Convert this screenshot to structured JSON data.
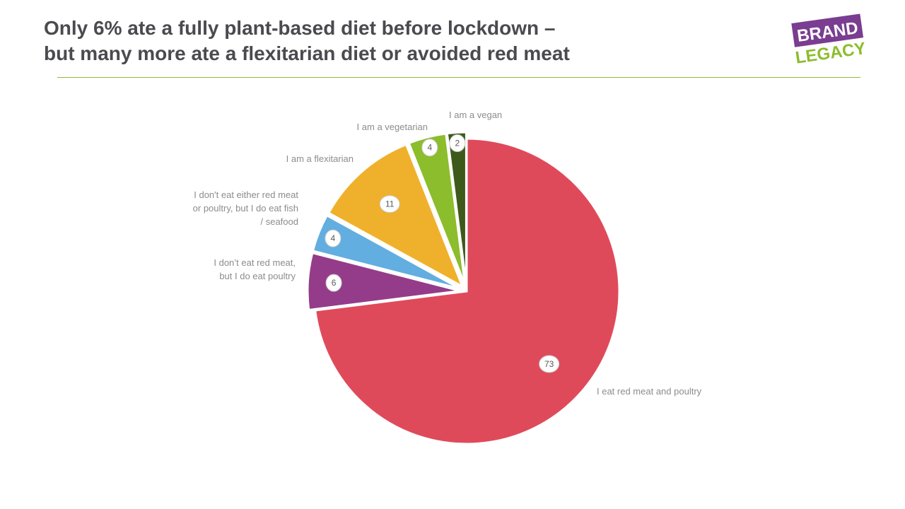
{
  "title": {
    "line1": "Only 6% ate a fully plant-based diet before lockdown –",
    "line2": "but many more ate a flexitarian diet or avoided red meat"
  },
  "logo": {
    "line1": "BRAND",
    "line2": "LEGACY"
  },
  "chart_data": {
    "type": "pie",
    "slices": [
      {
        "label": "I eat red meat and poultry",
        "value": 73,
        "color": "#df4a5a"
      },
      {
        "label": "I don’t eat red meat, but I do eat poultry",
        "value": 6,
        "color": "#943c8a"
      },
      {
        "label": "I don't eat either red meat or poultry, but I do eat fish / seafood",
        "value": 4,
        "color": "#62aee0"
      },
      {
        "label": "I am a flexitarian",
        "value": 11,
        "color": "#efb12b"
      },
      {
        "label": "I am a vegetarian",
        "value": 4,
        "color": "#8cbd2c"
      },
      {
        "label": "I am a vegan",
        "value": 2,
        "color": "#3d5a1a"
      }
    ]
  }
}
